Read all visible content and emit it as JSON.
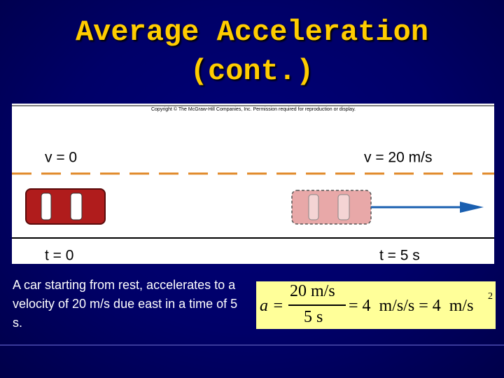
{
  "title": {
    "lines": [
      "Average Acceleration",
      "(cont.)"
    ]
  },
  "figure": {
    "copyright": "Copyright © The McGraw-Hill Companies, Inc. Permission required for reproduction or display.",
    "start_velocity": "v = 0",
    "end_velocity": "v = 20 m/s",
    "start_time": "t = 0",
    "end_time": "t = 5 s"
  },
  "body": "A car starting from rest, accelerates to a velocity of 20 m/s due east in a time of 5 s.",
  "formula": {
    "lhs": "a =",
    "numerator": "20 m/s",
    "denominator": "5 s",
    "rhs": "= 4  m/s/s = 4  m/s",
    "exponent": "2"
  }
}
